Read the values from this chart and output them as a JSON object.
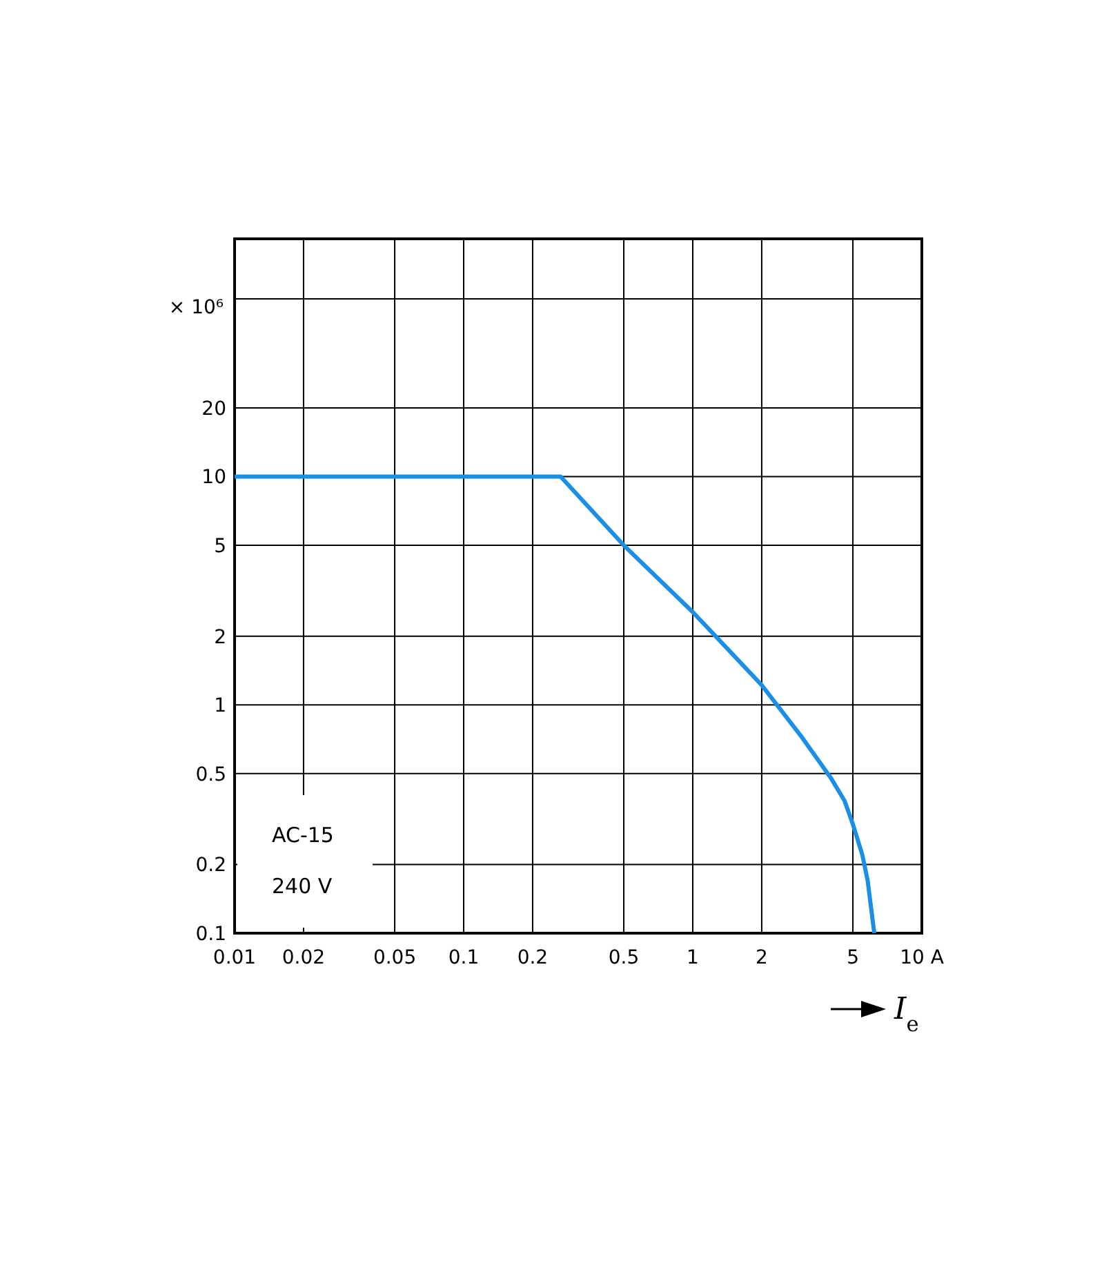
{
  "chart_data": {
    "type": "line",
    "ylabel": "× 10⁶",
    "xlabel": "I$_{e}$",
    "log": "xy",
    "grid": true,
    "line_style": "solid",
    "xlim": [
      0.01,
      10
    ],
    "ylim": [
      0.1,
      110
    ],
    "xticks": [
      0.01,
      0.02,
      0.05,
      0.1,
      0.2,
      0.5,
      1,
      2,
      5,
      {
        "value": 10,
        "label": "10 A"
      }
    ],
    "yticks": [
      0.1,
      0.2,
      0.5,
      1,
      2,
      5,
      10,
      20,
      {
        "value": 60,
        "label": null
      }
    ],
    "annotations": [
      "AC-15",
      "240 V"
    ],
    "series": [
      {
        "color": "#1a8fe8",
        "x": [
          0.01,
          0.265,
          0.5,
          1,
          2,
          3,
          4,
          4.6,
          5,
          5.5,
          5.8,
          6.0,
          6.2
        ],
        "values": [
          10,
          10,
          5,
          2.55,
          1.22,
          0.72,
          0.48,
          0.38,
          0.3,
          0.22,
          0.17,
          0.13,
          0.1
        ]
      }
    ]
  }
}
